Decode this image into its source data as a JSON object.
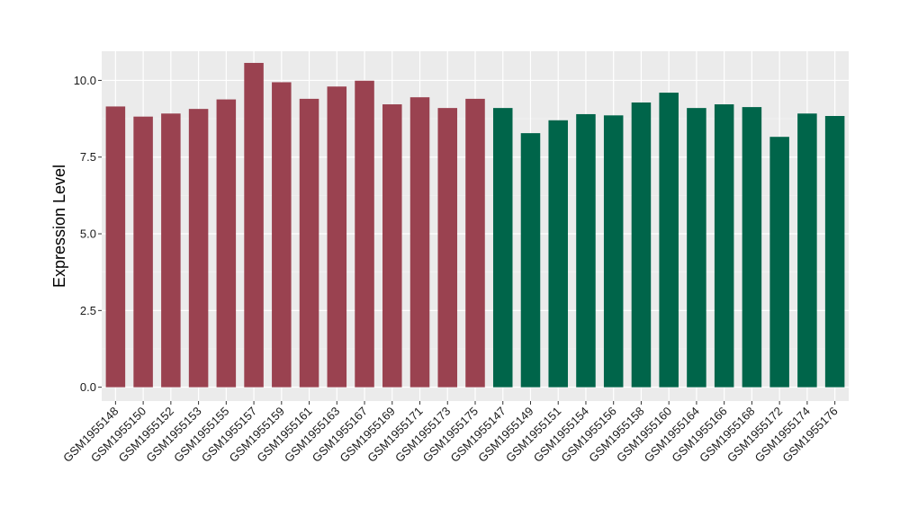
{
  "chart_data": {
    "type": "bar",
    "ylabel": "Expression Level",
    "ylim": [
      -0.45,
      10.95
    ],
    "yticks": [
      0.0,
      2.5,
      5.0,
      7.5,
      10.0
    ],
    "ytick_labels": [
      "0.0",
      "2.5",
      "5.0",
      "7.5",
      "10.0"
    ],
    "grid": true,
    "legend": "none",
    "colors": {
      "group1": "#9a4250",
      "group2": "#00654a",
      "panel": "#ebebeb",
      "grid_major": "#ffffff"
    },
    "categories": [
      "GSM1955148",
      "GSM1955150",
      "GSM1955152",
      "GSM1955153",
      "GSM1955155",
      "GSM1955157",
      "GSM1955159",
      "GSM1955161",
      "GSM1955163",
      "GSM1955167",
      "GSM1955169",
      "GSM1955171",
      "GSM1955173",
      "GSM1955175",
      "GSM1955147",
      "GSM1955149",
      "GSM1955151",
      "GSM1955154",
      "GSM1955156",
      "GSM1955158",
      "GSM1955160",
      "GSM1955164",
      "GSM1955166",
      "GSM1955168",
      "GSM1955172",
      "GSM1955174",
      "GSM1955176"
    ],
    "values": [
      9.15,
      8.82,
      8.92,
      9.07,
      9.38,
      10.57,
      9.94,
      9.4,
      9.8,
      9.99,
      9.22,
      9.45,
      9.1,
      9.4,
      9.1,
      8.28,
      8.7,
      8.9,
      8.86,
      9.28,
      9.6,
      9.1,
      9.22,
      9.13,
      8.16,
      8.92,
      8.84
    ],
    "groups": [
      "group1",
      "group1",
      "group1",
      "group1",
      "group1",
      "group1",
      "group1",
      "group1",
      "group1",
      "group1",
      "group1",
      "group1",
      "group1",
      "group1",
      "group2",
      "group2",
      "group2",
      "group2",
      "group2",
      "group2",
      "group2",
      "group2",
      "group2",
      "group2",
      "group2",
      "group2",
      "group2"
    ]
  }
}
